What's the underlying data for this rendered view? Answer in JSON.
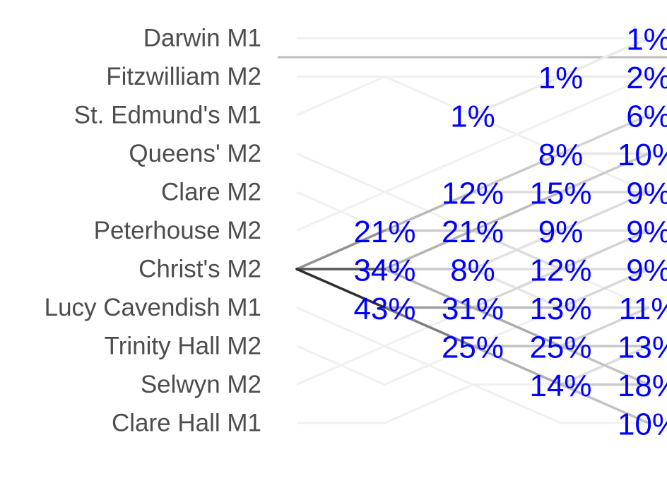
{
  "chart_data": {
    "type": "line",
    "title": "",
    "xlabel": "",
    "ylabel": "",
    "focus_crew": "Christ's M2",
    "crews": [
      "Darwin M1",
      "Fitzwilliam M2",
      "St. Edmund's M1",
      "Queens' M2",
      "Clare M2",
      "Peterhouse M2",
      "Christ's M2",
      "Lucy Cavendish M1",
      "Trinity Hall M2",
      "Selwyn M2",
      "Clare Hall M1"
    ],
    "days": [
      0,
      1,
      2,
      3,
      4
    ],
    "probabilities": [
      {
        "day": 1,
        "crew": "Peterhouse M2",
        "label": "21%"
      },
      {
        "day": 1,
        "crew": "Christ's M2",
        "label": "34%"
      },
      {
        "day": 1,
        "crew": "Lucy Cavendish M1",
        "label": "43%"
      },
      {
        "day": 2,
        "crew": "St. Edmund's M1",
        "label": "1%"
      },
      {
        "day": 2,
        "crew": "Clare M2",
        "label": "12%"
      },
      {
        "day": 2,
        "crew": "Peterhouse M2",
        "label": "21%"
      },
      {
        "day": 2,
        "crew": "Christ's M2",
        "label": "8%"
      },
      {
        "day": 2,
        "crew": "Lucy Cavendish M1",
        "label": "31%"
      },
      {
        "day": 2,
        "crew": "Trinity Hall M2",
        "label": "25%"
      },
      {
        "day": 3,
        "crew": "Fitzwilliam M2",
        "label": "1%"
      },
      {
        "day": 3,
        "crew": "Queens' M2",
        "label": "8%"
      },
      {
        "day": 3,
        "crew": "Clare M2",
        "label": "15%"
      },
      {
        "day": 3,
        "crew": "Peterhouse M2",
        "label": "9%"
      },
      {
        "day": 3,
        "crew": "Christ's M2",
        "label": "12%"
      },
      {
        "day": 3,
        "crew": "Lucy Cavendish M1",
        "label": "13%"
      },
      {
        "day": 3,
        "crew": "Trinity Hall M2",
        "label": "25%"
      },
      {
        "day": 3,
        "crew": "Selwyn M2",
        "label": "14%"
      },
      {
        "day": 4,
        "crew": "Darwin M1",
        "label": "1%"
      },
      {
        "day": 4,
        "crew": "Fitzwilliam M2",
        "label": "2%"
      },
      {
        "day": 4,
        "crew": "St. Edmund's M1",
        "label": "6%"
      },
      {
        "day": 4,
        "crew": "Queens' M2",
        "label": "10%"
      },
      {
        "day": 4,
        "crew": "Clare M2",
        "label": "9%"
      },
      {
        "day": 4,
        "crew": "Peterhouse M2",
        "label": "9%"
      },
      {
        "day": 4,
        "crew": "Christ's M2",
        "label": "9%"
      },
      {
        "day": 4,
        "crew": "Lucy Cavendish M1",
        "label": "11%"
      },
      {
        "day": 4,
        "crew": "Trinity Hall M2",
        "label": "13%"
      },
      {
        "day": 4,
        "crew": "Selwyn M2",
        "label": "18%"
      },
      {
        "day": 4,
        "crew": "Clare Hall M1",
        "label": "10%"
      }
    ],
    "transitions": [
      {
        "from_day": 0,
        "to_day": 1,
        "from": "Christ's M2",
        "to": "Peterhouse M2",
        "p": 0.21
      },
      {
        "from_day": 0,
        "to_day": 1,
        "from": "Christ's M2",
        "to": "Christ's M2",
        "p": 0.34
      },
      {
        "from_day": 0,
        "to_day": 1,
        "from": "Christ's M2",
        "to": "Lucy Cavendish M1",
        "p": 0.43
      },
      {
        "from_day": 1,
        "to_day": 2,
        "from": "Peterhouse M2",
        "to": "Clare M2",
        "p": 0.12
      },
      {
        "from_day": 1,
        "to_day": 2,
        "from": "Peterhouse M2",
        "to": "Peterhouse M2",
        "p": 0.08
      },
      {
        "from_day": 1,
        "to_day": 2,
        "from": "Christ's M2",
        "to": "Peterhouse M2",
        "p": 0.13
      },
      {
        "from_day": 1,
        "to_day": 2,
        "from": "Christ's M2",
        "to": "Christ's M2",
        "p": 0.08
      },
      {
        "from_day": 1,
        "to_day": 2,
        "from": "Christ's M2",
        "to": "Lucy Cavendish M1",
        "p": 0.13
      },
      {
        "from_day": 1,
        "to_day": 2,
        "from": "Lucy Cavendish M1",
        "to": "Lucy Cavendish M1",
        "p": 0.18
      },
      {
        "from_day": 1,
        "to_day": 2,
        "from": "Lucy Cavendish M1",
        "to": "Trinity Hall M2",
        "p": 0.25
      },
      {
        "from_day": 2,
        "to_day": 3,
        "from": "Clare M2",
        "to": "Queens' M2",
        "p": 0.08
      },
      {
        "from_day": 2,
        "to_day": 3,
        "from": "Clare M2",
        "to": "Clare M2",
        "p": 0.04
      },
      {
        "from_day": 2,
        "to_day": 3,
        "from": "Peterhouse M2",
        "to": "Clare M2",
        "p": 0.11
      },
      {
        "from_day": 2,
        "to_day": 3,
        "from": "Peterhouse M2",
        "to": "Peterhouse M2",
        "p": 0.06
      },
      {
        "from_day": 2,
        "to_day": 3,
        "from": "Peterhouse M2",
        "to": "Christ's M2",
        "p": 0.04
      },
      {
        "from_day": 2,
        "to_day": 3,
        "from": "Christ's M2",
        "to": "Peterhouse M2",
        "p": 0.03
      },
      {
        "from_day": 2,
        "to_day": 3,
        "from": "Christ's M2",
        "to": "Christ's M2",
        "p": 0.03
      },
      {
        "from_day": 2,
        "to_day": 3,
        "from": "Christ's M2",
        "to": "Lucy Cavendish M1",
        "p": 0.02
      },
      {
        "from_day": 2,
        "to_day": 3,
        "from": "Lucy Cavendish M1",
        "to": "Christ's M2",
        "p": 0.05
      },
      {
        "from_day": 2,
        "to_day": 3,
        "from": "Lucy Cavendish M1",
        "to": "Lucy Cavendish M1",
        "p": 0.11
      },
      {
        "from_day": 2,
        "to_day": 3,
        "from": "Lucy Cavendish M1",
        "to": "Trinity Hall M2",
        "p": 0.15
      },
      {
        "from_day": 2,
        "to_day": 3,
        "from": "Trinity Hall M2",
        "to": "Trinity Hall M2",
        "p": 0.1
      },
      {
        "from_day": 2,
        "to_day": 3,
        "from": "Trinity Hall M2",
        "to": "Selwyn M2",
        "p": 0.14
      },
      {
        "from_day": 2,
        "to_day": 3,
        "from": "St. Edmund's M1",
        "to": "Fitzwilliam M2",
        "p": 0.01
      },
      {
        "from_day": 3,
        "to_day": 4,
        "from": "Fitzwilliam M2",
        "to": "Darwin M1",
        "p": 0.01
      },
      {
        "from_day": 3,
        "to_day": 4,
        "from": "Fitzwilliam M2",
        "to": "Fitzwilliam M2",
        "p": 0.01
      },
      {
        "from_day": 3,
        "to_day": 4,
        "from": "Queens' M2",
        "to": "St. Edmund's M1",
        "p": 0.06
      },
      {
        "from_day": 3,
        "to_day": 4,
        "from": "Queens' M2",
        "to": "Queens' M2",
        "p": 0.02
      },
      {
        "from_day": 3,
        "to_day": 4,
        "from": "Clare M2",
        "to": "Queens' M2",
        "p": 0.08
      },
      {
        "from_day": 3,
        "to_day": 4,
        "from": "Clare M2",
        "to": "Clare M2",
        "p": 0.05
      },
      {
        "from_day": 3,
        "to_day": 4,
        "from": "Peterhouse M2",
        "to": "Clare M2",
        "p": 0.04
      },
      {
        "from_day": 3,
        "to_day": 4,
        "from": "Peterhouse M2",
        "to": "Peterhouse M2",
        "p": 0.03
      },
      {
        "from_day": 3,
        "to_day": 4,
        "from": "Christ's M2",
        "to": "Peterhouse M2",
        "p": 0.06
      },
      {
        "from_day": 3,
        "to_day": 4,
        "from": "Christ's M2",
        "to": "Christ's M2",
        "p": 0.04
      },
      {
        "from_day": 3,
        "to_day": 4,
        "from": "Lucy Cavendish M1",
        "to": "Christ's M2",
        "p": 0.05
      },
      {
        "from_day": 3,
        "to_day": 4,
        "from": "Lucy Cavendish M1",
        "to": "Lucy Cavendish M1",
        "p": 0.05
      },
      {
        "from_day": 3,
        "to_day": 4,
        "from": "Trinity Hall M2",
        "to": "Lucy Cavendish M1",
        "p": 0.06
      },
      {
        "from_day": 3,
        "to_day": 4,
        "from": "Trinity Hall M2",
        "to": "Trinity Hall M2",
        "p": 0.09
      },
      {
        "from_day": 3,
        "to_day": 4,
        "from": "Trinity Hall M2",
        "to": "Selwyn M2",
        "p": 0.1
      },
      {
        "from_day": 3,
        "to_day": 4,
        "from": "Selwyn M2",
        "to": "Trinity Hall M2",
        "p": 0.04
      },
      {
        "from_day": 3,
        "to_day": 4,
        "from": "Selwyn M2",
        "to": "Selwyn M2",
        "p": 0.08
      },
      {
        "from_day": 3,
        "to_day": 4,
        "from": "Selwyn M2",
        "to": "Clare Hall M1",
        "p": 0.1
      }
    ],
    "background_paths": [
      [
        "Darwin M1",
        "Darwin M1",
        "Darwin M1",
        "Darwin M1",
        "Darwin M1"
      ],
      [
        "Fitzwilliam M2",
        "Fitzwilliam M2",
        "Fitzwilliam M2",
        "Fitzwilliam M2",
        "Fitzwilliam M2"
      ],
      [
        "St. Edmund's M1",
        "Fitzwilliam M2",
        "St. Edmund's M1",
        "Queens' M2",
        "Clare M2"
      ],
      [
        "Queens' M2",
        "Clare M2",
        "Peterhouse M2",
        "Christ's M2",
        "Lucy Cavendish M1"
      ],
      [
        "Clare M2",
        "Peterhouse M2",
        "Clare M2",
        "Queens' M2",
        "St. Edmund's M1"
      ],
      [
        "Peterhouse M2",
        "Clare M2",
        "Queens' M2",
        "St. Edmund's M1",
        "Fitzwilliam M2"
      ],
      [
        "Lucy Cavendish M1",
        "Trinity Hall M2",
        "Selwyn M2",
        "Clare Hall M1",
        "Clare Hall M1"
      ],
      [
        "Trinity Hall M2",
        "Selwyn M2",
        "Trinity Hall M2",
        "Lucy Cavendish M1",
        "Christ's M2"
      ],
      [
        "Selwyn M2",
        "Trinity Hall M2",
        "Lucy Cavendish M1",
        "Christ's M2",
        "Peterhouse M2"
      ],
      [
        "Clare Hall M1",
        "Clare Hall M1",
        "Selwyn M2",
        "Selwyn M2",
        "Trinity Hall M2"
      ]
    ]
  }
}
